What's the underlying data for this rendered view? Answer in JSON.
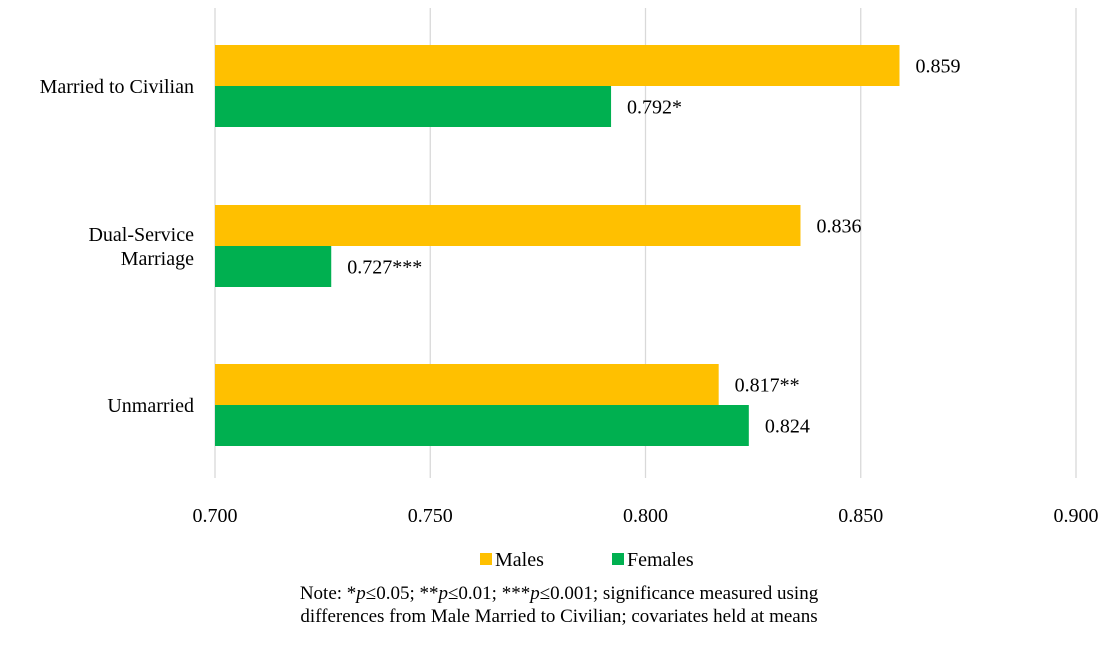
{
  "chart_data": {
    "type": "bar",
    "orientation": "horizontal",
    "categories": [
      "Married to Civilian",
      "Dual-Service Marriage",
      "Unmarried"
    ],
    "category_lines": [
      [
        "Married to Civilian"
      ],
      [
        "Dual-Service",
        "Marriage"
      ],
      [
        "Unmarried"
      ]
    ],
    "series": [
      {
        "name": "Males",
        "color": "#FFC000",
        "values": [
          0.859,
          0.836,
          0.817
        ],
        "labels": [
          "0.859",
          "0.836",
          "0.817**"
        ]
      },
      {
        "name": "Females",
        "color": "#00B050",
        "values": [
          0.792,
          0.727,
          0.824
        ],
        "labels": [
          "0.792*",
          "0.727***",
          "0.824"
        ]
      }
    ],
    "xlim": [
      0.7,
      0.9
    ],
    "xticks": [
      "0.700",
      "0.750",
      "0.800",
      "0.850",
      "0.900"
    ],
    "grid": true,
    "legend_position": "bottom",
    "title": "",
    "xlabel": "",
    "ylabel": ""
  },
  "note": {
    "line1": [
      "Note: *",
      "p",
      "≤0.05; **",
      "p",
      "≤0.01; ***",
      "p",
      "≤0.001; significance measured using"
    ],
    "line2": "differences from Male Married to Civilian; covariates held at means"
  }
}
